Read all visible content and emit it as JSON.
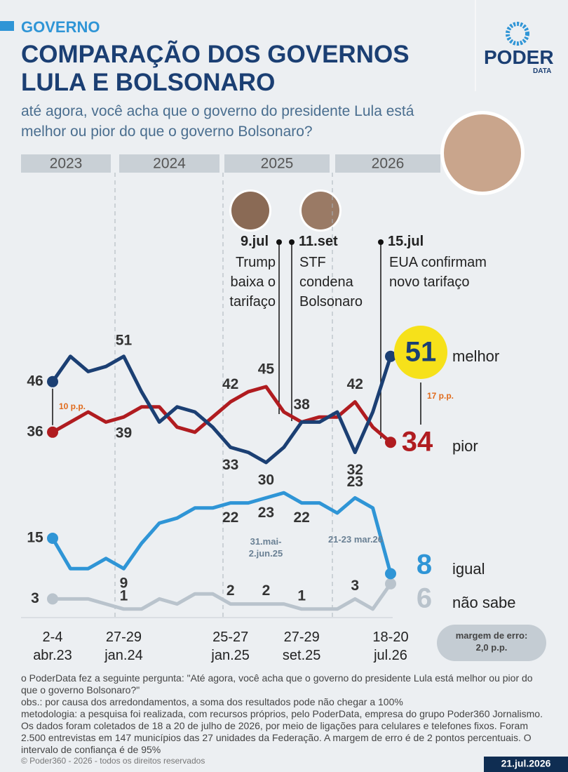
{
  "header": {
    "section": "GOVERNO",
    "title": "COMPARAÇÃO DOS GOVERNOS LULA E BOLSONARO",
    "subtitle": "até agora, você acha que o governo do presidente Lula está melhor ou pior do que o governo Bolsonaro?",
    "logo": "PODER",
    "logo_sub": "DATA"
  },
  "chart_data": {
    "type": "line",
    "categories": [
      "2-4 abr.23",
      null,
      null,
      null,
      "27-29 jan.24",
      null,
      null,
      null,
      null,
      null,
      "25-27 jan.25",
      null,
      null,
      null,
      "27-29 set.25",
      null,
      null,
      null,
      null,
      "18-20 jul.26"
    ],
    "series": [
      {
        "name": "melhor",
        "color": "#1b3f73",
        "values": [
          46,
          51,
          48,
          49,
          51,
          44,
          38,
          41,
          40,
          37,
          33,
          32,
          30,
          33,
          38,
          38,
          40,
          32,
          40,
          51
        ],
        "value_labels": [
          "46",
          null,
          null,
          null,
          "51",
          null,
          null,
          null,
          null,
          null,
          "33",
          null,
          "30",
          null,
          null,
          null,
          null,
          "32",
          null,
          "51"
        ]
      },
      {
        "name": "pior",
        "color": "#b01c20",
        "values": [
          36,
          38,
          40,
          38,
          39,
          41,
          41,
          37,
          36,
          39,
          42,
          44,
          45,
          40,
          38,
          39,
          39,
          42,
          37,
          34
        ],
        "value_labels": [
          "36",
          null,
          null,
          null,
          "39",
          null,
          null,
          null,
          null,
          null,
          "42",
          null,
          "45",
          null,
          "38",
          null,
          null,
          "42",
          null,
          "34"
        ]
      },
      {
        "name": "igual",
        "color": "#2f95d6",
        "values": [
          15,
          9,
          9,
          11,
          9,
          14,
          18,
          19,
          21,
          21,
          22,
          22,
          23,
          24,
          22,
          22,
          20,
          23,
          21,
          8
        ],
        "value_labels": [
          "15",
          null,
          null,
          null,
          "9",
          null,
          null,
          null,
          null,
          null,
          "22",
          null,
          "23",
          null,
          "22",
          null,
          null,
          "23",
          null,
          "8"
        ]
      },
      {
        "name": "não sabe",
        "color": "#b9c3cc",
        "values": [
          3,
          3,
          3,
          2,
          1,
          1,
          3,
          2,
          4,
          4,
          2,
          2,
          2,
          2,
          1,
          1,
          1,
          3,
          1,
          6
        ],
        "value_labels": [
          "3",
          null,
          null,
          null,
          "1",
          null,
          null,
          null,
          null,
          null,
          "2",
          null,
          "2",
          null,
          "1",
          null,
          null,
          "3",
          null,
          "6"
        ]
      }
    ],
    "ylim": [
      0,
      60
    ],
    "periods": [
      "2023",
      "2024",
      "2025",
      "2026"
    ],
    "events": [
      {
        "date": "9.jul",
        "text": "Trump baixa o tarifaço"
      },
      {
        "date": "11.set",
        "text": "STF condena Bolsonaro"
      },
      {
        "date": "15.jul",
        "text": "EUA confirmam novo tarifaço"
      }
    ],
    "survey_notes": [
      "31.mai-2.jun.25",
      "21-23 mar.26"
    ],
    "differences": [
      "10 p.p.",
      "17 p.p."
    ],
    "margin_of_error": "margem de erro: 2,0 p.p."
  },
  "footer": {
    "notes": [
      "o PoderData fez a seguinte pergunta: \"Até agora, você acha que o governo do presidente Lula está melhor ou pior do que o governo Bolsonaro?\"",
      "obs.: por causa dos arredondamentos, a soma dos resultados pode não chegar a 100%",
      "metodologia: a pesquisa foi realizada, com recursos próprios, pelo PoderData, empresa do grupo Poder360 Jornalismo. Os dados foram coletados de 18 a 20 de julho de 2026, por meio de ligações para celulares e telefones fixos. Foram 2.500 entrevistas em 147 municípios das 27 unidades da Federação. A margem de erro é de 2 pontos percentuais. O intervalo de confiança é de 95%"
    ],
    "copyright": "© Poder360 - 2026 - todos os direitos reservados",
    "date": "21.jul.2026"
  }
}
